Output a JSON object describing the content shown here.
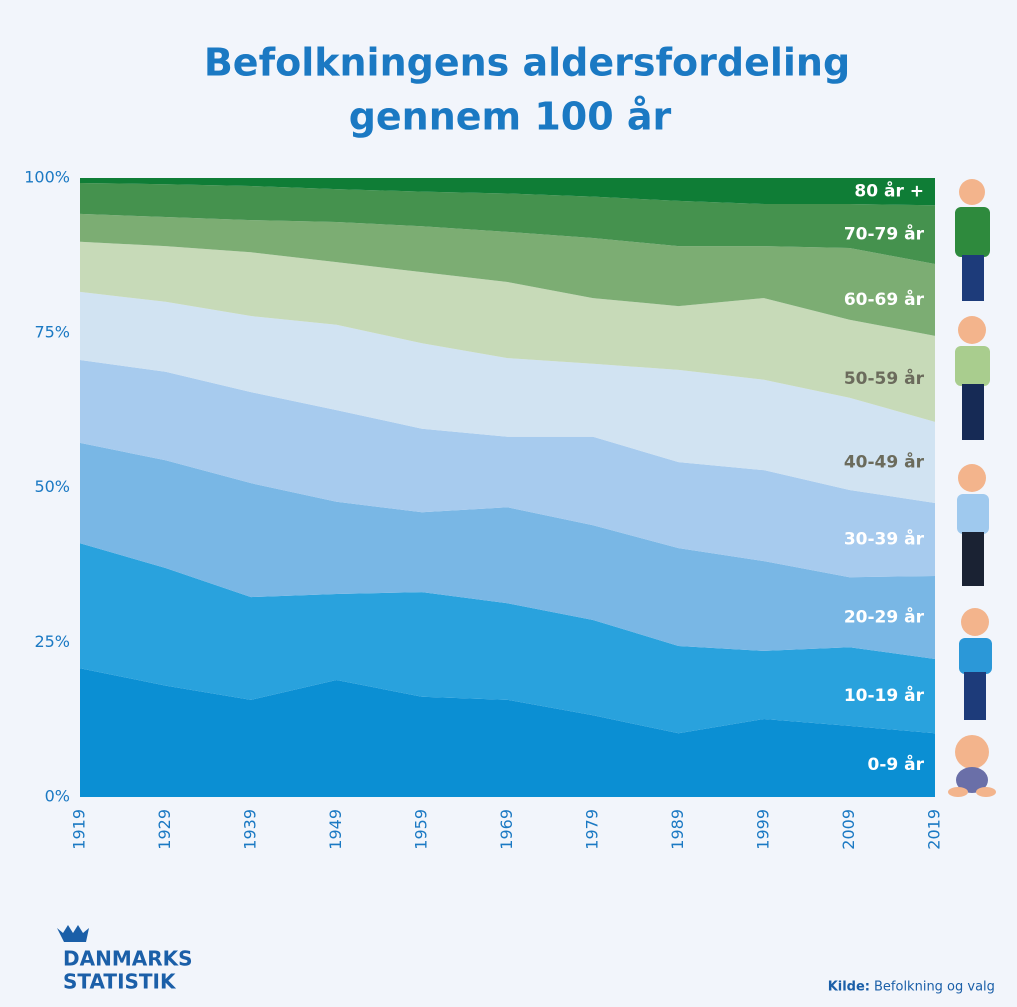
{
  "chart_data": {
    "type": "stacked_area",
    "title": [
      "Befolkningens aldersfordeling",
      "gennem 100 år"
    ],
    "x": [
      1919,
      1929,
      1939,
      1949,
      1959,
      1969,
      1979,
      1989,
      1999,
      2009,
      2019
    ],
    "xlim": [
      1919,
      2019
    ],
    "xticks": [
      1919,
      1929,
      1939,
      1949,
      1959,
      1969,
      1979,
      1989,
      1999,
      2009,
      2019
    ],
    "ylim": [
      0,
      100
    ],
    "yticks": [
      {
        "value": 0,
        "label": "0%"
      },
      {
        "value": 25,
        "label": "25%"
      },
      {
        "value": 50,
        "label": "50%"
      },
      {
        "value": 75,
        "label": "75%"
      },
      {
        "value": 100,
        "label": "100%"
      }
    ],
    "series": [
      {
        "name": "0-9 år",
        "color": "#0b8fd3",
        "label_color": "#ffffff",
        "values": [
          20.8,
          18,
          15.7,
          18.9,
          16.2,
          15.7,
          13.2,
          10.3,
          12.6,
          11.5,
          10.3
        ]
      },
      {
        "name": "10-19 år",
        "color": "#29a2dd",
        "label_color": "#ffffff",
        "values": [
          20.2,
          19,
          16.6,
          13.9,
          16.9,
          15.6,
          15.4,
          14.1,
          11,
          12.7,
          12
        ]
      },
      {
        "name": "20-29 år",
        "color": "#79b7e5",
        "label_color": "#ffffff",
        "values": [
          16.2,
          17.4,
          18.4,
          14.9,
          12.9,
          15.5,
          15.3,
          15.8,
          14.5,
          11.3,
          13.4
        ]
      },
      {
        "name": "30-39 år",
        "color": "#a7cbee",
        "label_color": "#ffffff",
        "values": [
          13.4,
          14.3,
          14.7,
          14.8,
          13.5,
          11.4,
          14.3,
          13.9,
          14.7,
          14.1,
          11.8
        ]
      },
      {
        "name": "40-49 år",
        "color": "#d1e3f2",
        "label_color": "#6b6b5c",
        "values": [
          11,
          11.3,
          12.3,
          13.8,
          13.8,
          12.7,
          11.8,
          14.9,
          14.6,
          14.9,
          13.1
        ]
      },
      {
        "name": "50-59 år",
        "color": "#c7dab8",
        "label_color": "#6b6b5c",
        "values": [
          8.1,
          9,
          10.3,
          10.1,
          11.5,
          12.3,
          10.6,
          10.3,
          13.2,
          12.6,
          13.9
        ]
      },
      {
        "name": "60-69 år",
        "color": "#7cad73",
        "label_color": "#ffffff",
        "values": [
          4.5,
          4.7,
          5.2,
          6.5,
          7.4,
          8.1,
          9.7,
          9.7,
          8.4,
          11.6,
          11.6
        ]
      },
      {
        "name": "70-79 år",
        "color": "#45924e",
        "label_color": "#ffffff",
        "values": [
          5,
          5.3,
          5.5,
          5.3,
          5.6,
          6.2,
          6.7,
          7.3,
          6.8,
          7.1,
          9.5
        ]
      },
      {
        "name": "80 år +",
        "color": "#0f7d36",
        "label_color": "#ffffff",
        "values": [
          0.8,
          1,
          1.3,
          1.8,
          2.2,
          2.5,
          3,
          3.7,
          4.2,
          4.2,
          4.4
        ]
      }
    ],
    "logo": [
      "DANMARKS",
      "STATISTIK"
    ],
    "source_label": "Kilde:",
    "source": "Befolkning og valg"
  }
}
